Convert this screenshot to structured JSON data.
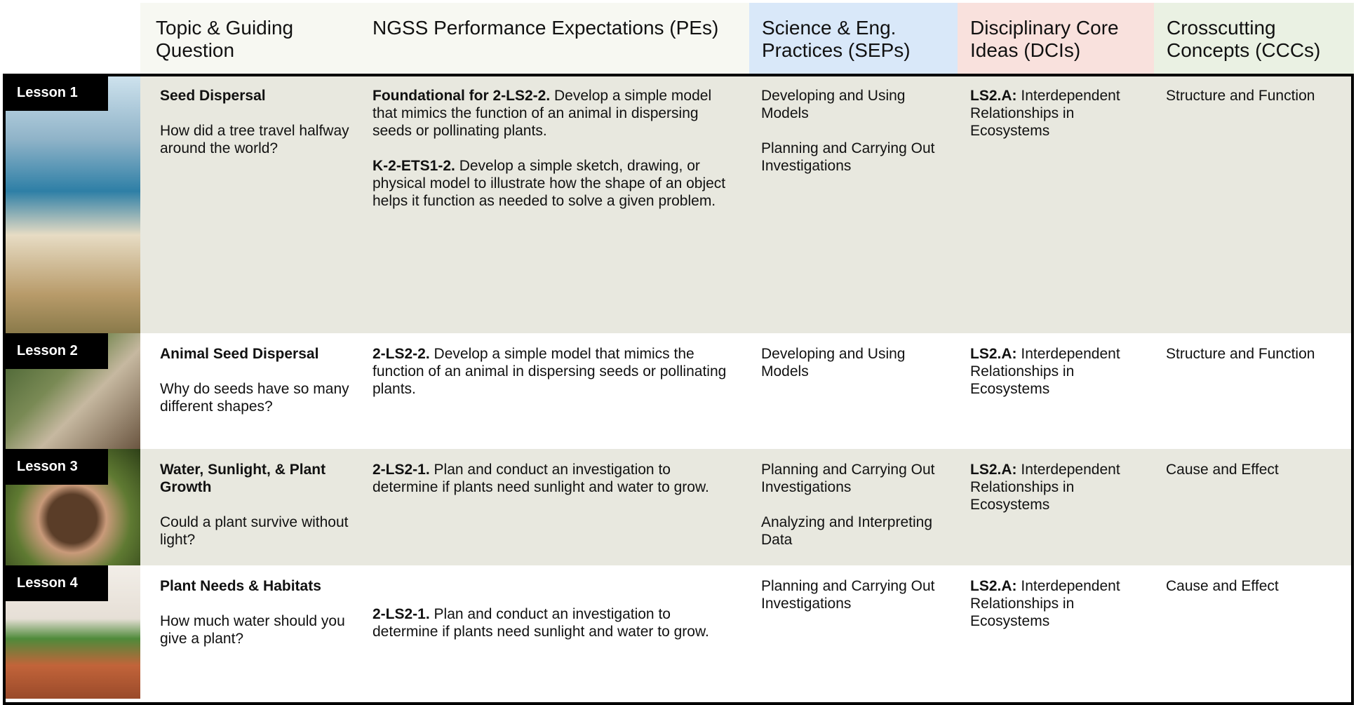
{
  "header": {
    "columns": [
      "Topic & Guiding Question",
      "NGSS Performance Expectations (PEs)",
      "Science & Eng. Practices (SEPs)",
      "Disciplinary Core Ideas (DCIs)",
      "Crosscutting Concepts (CCCs)"
    ]
  },
  "rows": [
    {
      "lesson": "Lesson 1",
      "topic": "Seed Dispersal",
      "question": "How did a tree travel halfway around the world?",
      "pes": [
        {
          "code": "Foundational for 2-LS2-2.",
          "text": "Develop a simple model that mimics the function of an animal in dispersing seeds or pollinating plants."
        },
        {
          "code": "K-2-ETS1-2.",
          "text": "Develop a simple sketch, drawing, or physical model to illustrate how the shape of an object helps it function as needed to solve a given problem."
        }
      ],
      "seps": [
        "Developing and Using Models",
        "Planning and Carrying Out Investigations"
      ],
      "dcis": [
        {
          "code": "LS2.A:",
          "text": "Interdependent Relationships in Ecosystems"
        }
      ],
      "cccs": [
        "Structure and Function"
      ]
    },
    {
      "lesson": "Lesson 2",
      "topic": "Animal Seed Dispersal",
      "question": "Why do seeds have so many different shapes?",
      "pes": [
        {
          "code": "2-LS2-2.",
          "text": "Develop a simple model that mimics the function of an animal in dispersing seeds or pollinating plants."
        }
      ],
      "seps": [
        "Developing and Using Models"
      ],
      "dcis": [
        {
          "code": "LS2.A:",
          "text": "Interdependent Relationships in Ecosystems"
        }
      ],
      "cccs": [
        "Structure and Function"
      ]
    },
    {
      "lesson": "Lesson 3",
      "topic": "Water, Sunlight, & Plant Growth",
      "question": "Could a plant survive without light?",
      "pes": [
        {
          "code": "2-LS2-1.",
          "text": "Plan and conduct an investigation to determine if plants need sunlight and water to grow."
        }
      ],
      "seps": [
        "Planning and Carrying Out Investigations",
        "Analyzing and Interpreting Data"
      ],
      "dcis": [
        {
          "code": "LS2.A:",
          "text": "Interdependent Relationships in Ecosystems"
        }
      ],
      "cccs": [
        "Cause and Effect"
      ]
    },
    {
      "lesson": "Lesson 4",
      "topic": "Plant Needs & Habitats",
      "question": "How much water should you give a plant?",
      "pes": [
        {
          "code": "2-LS2-1.",
          "text": "Plan and conduct an investigation to determine if plants need sunlight and water to grow."
        }
      ],
      "seps": [
        "Planning and Carrying Out Investigations"
      ],
      "dcis": [
        {
          "code": "LS2.A:",
          "text": "Interdependent Relationships in Ecosystems"
        }
      ],
      "cccs": [
        "Cause and Effect"
      ]
    }
  ]
}
